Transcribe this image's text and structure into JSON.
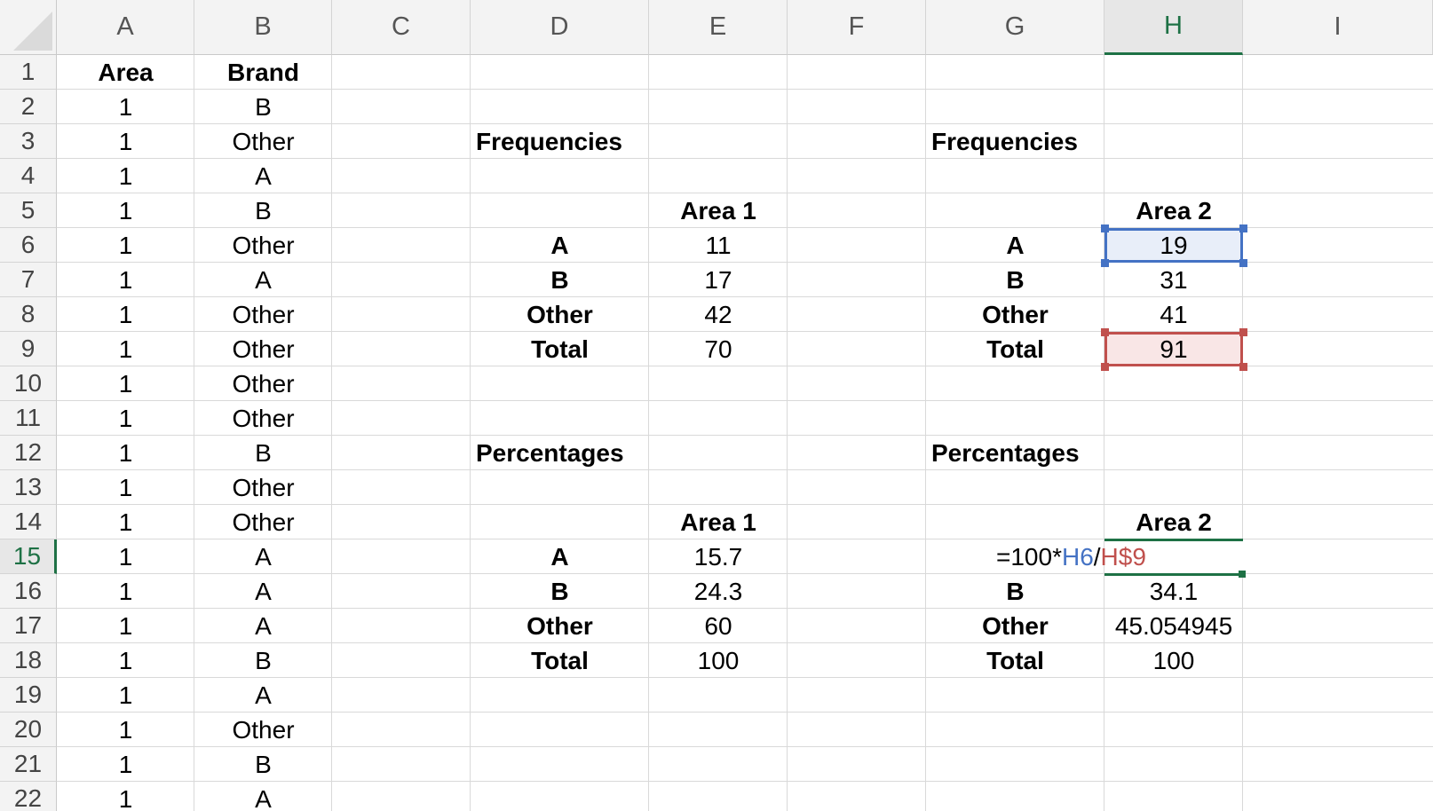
{
  "columns": [
    "A",
    "B",
    "C",
    "D",
    "E",
    "F",
    "G",
    "H",
    "I"
  ],
  "selected_column": "H",
  "rows": [
    "1",
    "2",
    "3",
    "4",
    "5",
    "6",
    "7",
    "8",
    "9",
    "10",
    "11",
    "12",
    "13",
    "14",
    "15",
    "16",
    "17",
    "18",
    "19",
    "20",
    "21",
    "22"
  ],
  "selected_row": "15",
  "raw_data": {
    "area_header": "Area",
    "brand_header": "Brand",
    "areas": [
      "1",
      "1",
      "1",
      "1",
      "1",
      "1",
      "1",
      "1",
      "1",
      "1",
      "1",
      "1",
      "1",
      "1",
      "1",
      "1",
      "1",
      "1",
      "1",
      "1",
      "1"
    ],
    "brands": [
      "B",
      "Other",
      "A",
      "B",
      "Other",
      "A",
      "Other",
      "Other",
      "Other",
      "Other",
      "B",
      "Other",
      "Other",
      "A",
      "A",
      "A",
      "B",
      "A",
      "Other",
      "B",
      "A"
    ]
  },
  "area1": {
    "freq_title": "Frequencies",
    "pct_title": "Percentages",
    "col_header": "Area 1",
    "labels": [
      "A",
      "B",
      "Other",
      "Total"
    ],
    "freq_values": [
      "11",
      "17",
      "42",
      "70"
    ],
    "pct_values": [
      "15.7",
      "24.3",
      "60",
      "100"
    ]
  },
  "area2": {
    "freq_title": "Frequencies",
    "pct_title": "Percentages",
    "col_header": "Area 2",
    "labels": [
      "A",
      "B",
      "Other",
      "Total"
    ],
    "freq_values": [
      "19",
      "31",
      "41",
      "91"
    ],
    "pct_labels": [
      "B",
      "Other",
      "Total"
    ],
    "pct_values": [
      "34.1",
      "45.054945",
      "100"
    ]
  },
  "formula": {
    "prefix": "=100*",
    "ref1": "H6",
    "sep": "/",
    "ref2": "H$9"
  },
  "colors": {
    "selection": "#1e7145",
    "ref_blue": "#4472c4",
    "ref_red": "#c0504d"
  }
}
